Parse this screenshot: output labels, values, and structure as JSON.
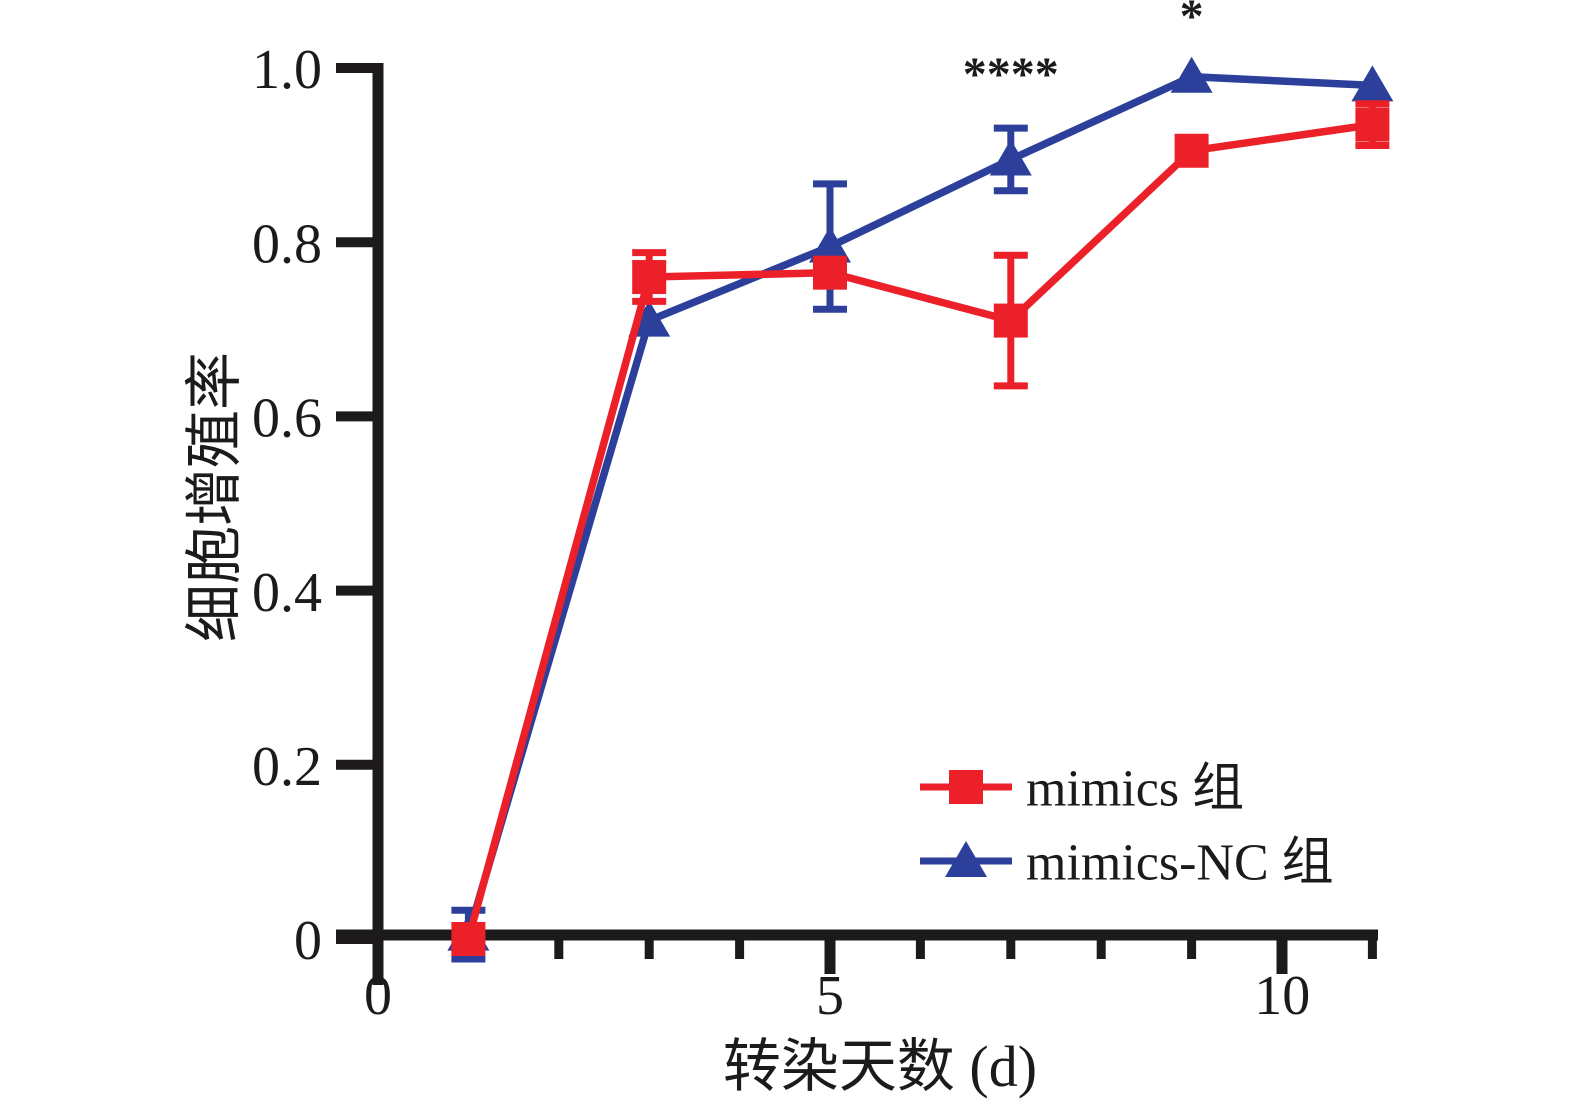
{
  "chart_data": {
    "type": "line",
    "title": "",
    "xlabel": "转染天数 (d)",
    "ylabel": "细胞增殖率",
    "x_tick_labels": [
      "0",
      "5",
      "10"
    ],
    "x_major_ticks": [
      0,
      5,
      10
    ],
    "x_minor_ticks": [
      1,
      2,
      3,
      4,
      6,
      7,
      8,
      9,
      11
    ],
    "y_tick_labels": [
      "0",
      "0.2",
      "0.4",
      "0.6",
      "0.8",
      "1.0"
    ],
    "y_tick_values": [
      0,
      0.2,
      0.4,
      0.6,
      0.8,
      1.0
    ],
    "xlim": [
      0,
      11.5
    ],
    "ylim": [
      0,
      1.0
    ],
    "grid": "off",
    "x_days": [
      1,
      3,
      5,
      7,
      9,
      11
    ],
    "series": [
      {
        "name": "mimics 组",
        "marker": "square",
        "color": "#ec2028",
        "values": [
          0.0,
          0.76,
          0.765,
          0.71,
          0.905,
          0.935
        ],
        "errors": [
          0,
          0.028,
          0,
          0.075,
          0,
          0.024
        ]
      },
      {
        "name": "mimics-NC 组",
        "marker": "triangle",
        "color": "#2b3f9b",
        "values": [
          0.005,
          0.71,
          0.795,
          0.895,
          0.99,
          0.98
        ],
        "errors": [
          0.028,
          0,
          0.072,
          0.036,
          0,
          0
        ]
      }
    ],
    "annotations": [
      {
        "text": "****",
        "day": 7,
        "y": 0.995
      },
      {
        "text": "*",
        "day": 9,
        "y": 1.062
      }
    ],
    "legend_position": "inside-bottom-right"
  },
  "colors": {
    "red": "#ec2028",
    "blue": "#2b3f9b",
    "axis": "#1d1a1b",
    "background": "#ffffff"
  }
}
